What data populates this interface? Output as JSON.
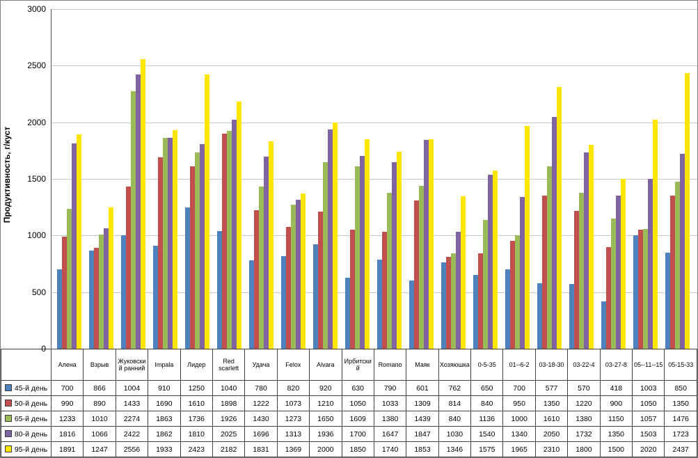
{
  "chart_data": {
    "type": "bar",
    "title": "",
    "xlabel": "",
    "ylabel": "Продуктивность, г/куст",
    "ylim": [
      0,
      3000
    ],
    "yticks": [
      0,
      500,
      1000,
      1500,
      2000,
      2500,
      3000
    ],
    "grid": true,
    "legend_position": "table-left",
    "categories": [
      "Алена",
      "Взрыв",
      "Жуковский ранний",
      "Impala",
      "Лидер",
      "Red scarlett",
      "Удача",
      "Felox",
      "Alvara",
      "Ирбитский",
      "Romano",
      "Маяк",
      "Хозяюшка",
      "0-5-35",
      "01--6-2",
      "03-18-30",
      "03-22-4",
      "03-27-8",
      "05--11--15",
      "05-15-33"
    ],
    "series": [
      {
        "name": "45-й день",
        "color": "#4F81BD",
        "values": [
          700,
          866,
          1004,
          910,
          1250,
          1040,
          780,
          820,
          920,
          630,
          790,
          601,
          762,
          650,
          700,
          577,
          570,
          418,
          1003,
          850
        ]
      },
      {
        "name": "50-й день",
        "color": "#C0504D",
        "values": [
          990,
          890,
          1433,
          1690,
          1610,
          1898,
          1222,
          1073,
          1210,
          1050,
          1033,
          1309,
          814,
          840,
          950,
          1350,
          1220,
          900,
          1050,
          1350
        ]
      },
      {
        "name": "65-й день",
        "color": "#9BBB59",
        "values": [
          1233,
          1010,
          2274,
          1863,
          1736,
          1926,
          1430,
          1273,
          1650,
          1609,
          1380,
          1439,
          840,
          1136,
          1000,
          1610,
          1380,
          1150,
          1057,
          1476
        ]
      },
      {
        "name": "80-й день",
        "color": "#8064A2",
        "values": [
          1816,
          1066,
          2422,
          1862,
          1810,
          2025,
          1696,
          1313,
          1936,
          1700,
          1647,
          1847,
          1030,
          1540,
          1340,
          2050,
          1732,
          1350,
          1503,
          1723
        ]
      },
      {
        "name": "95-й день",
        "color": "#FFE600",
        "values": [
          1891,
          1247,
          2556,
          1933,
          2423,
          2182,
          1831,
          1369,
          2000,
          1850,
          1740,
          1853,
          1346,
          1575,
          1965,
          2310,
          1800,
          1500,
          2020,
          2437
        ]
      }
    ]
  }
}
